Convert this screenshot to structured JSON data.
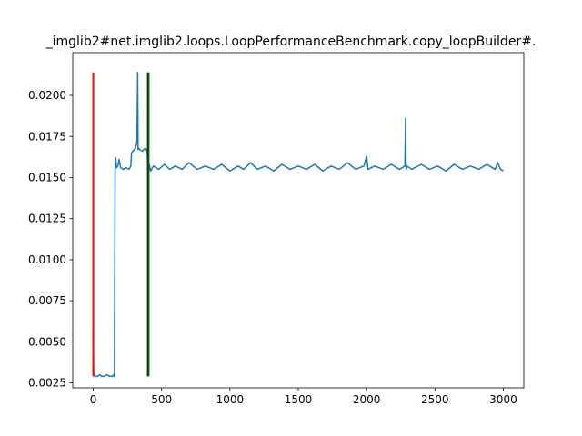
{
  "chart_data": {
    "type": "line",
    "title": "_imglib2#net.imglib2.loops.LoopPerformanceBenchmark.copy_loopBuilder#.",
    "xlabel": "",
    "ylabel": "",
    "xlim": [
      -150,
      3150
    ],
    "ylim": [
      0.0022,
      0.0226
    ],
    "xticks": [
      0,
      500,
      1000,
      1500,
      2000,
      2500,
      3000
    ],
    "xtick_labels": [
      "0",
      "500",
      "1000",
      "1500",
      "2000",
      "2500",
      "3000"
    ],
    "yticks": [
      0.0025,
      0.005,
      0.0075,
      0.01,
      0.0125,
      0.015,
      0.0175,
      0.02
    ],
    "ytick_labels": [
      "0.0025",
      "0.0050",
      "0.0075",
      "0.0100",
      "0.0125",
      "0.0150",
      "0.0175",
      "0.0200"
    ],
    "grid": false,
    "series": [
      {
        "color": "#1f77b4",
        "x": [
          0,
          2,
          4,
          10,
          30,
          50,
          60,
          80,
          100,
          120,
          140,
          150,
          155,
          160,
          165,
          170,
          180,
          190,
          200,
          220,
          240,
          260,
          275,
          280,
          300,
          310,
          320,
          325,
          328,
          332,
          340,
          360,
          380,
          395,
          400,
          405,
          410,
          420,
          440,
          480,
          520,
          560,
          600,
          650,
          700,
          760,
          820,
          880,
          940,
          1000,
          1060,
          1100,
          1150,
          1200,
          1260,
          1320,
          1380,
          1440,
          1500,
          1560,
          1620,
          1680,
          1740,
          1800,
          1860,
          1920,
          1980,
          2000,
          2010,
          2060,
          2120,
          2180,
          2240,
          2280,
          2285,
          2288,
          2291,
          2295,
          2330,
          2400,
          2460,
          2520,
          2580,
          2640,
          2700,
          2760,
          2820,
          2880,
          2940,
          2960,
          2980,
          3000
        ],
        "y": [
          0.0056,
          0.0036,
          0.003,
          0.0029,
          0.0029,
          0.003,
          0.0029,
          0.0029,
          0.003,
          0.0029,
          0.0029,
          0.003,
          0.0029,
          0.0155,
          0.0162,
          0.0156,
          0.0157,
          0.0161,
          0.0156,
          0.0155,
          0.0156,
          0.0155,
          0.0157,
          0.0165,
          0.0167,
          0.0168,
          0.0172,
          0.0214,
          0.0167,
          0.0168,
          0.0167,
          0.0166,
          0.0168,
          0.0166,
          0.0157,
          0.0154,
          0.0158,
          0.0154,
          0.0157,
          0.0155,
          0.0158,
          0.0155,
          0.0157,
          0.0155,
          0.0159,
          0.0155,
          0.0157,
          0.0155,
          0.0158,
          0.0154,
          0.0157,
          0.0155,
          0.0159,
          0.0155,
          0.0157,
          0.0154,
          0.0158,
          0.0155,
          0.0157,
          0.0155,
          0.0158,
          0.0154,
          0.0157,
          0.0155,
          0.0159,
          0.0155,
          0.0157,
          0.0163,
          0.0155,
          0.0157,
          0.0155,
          0.0158,
          0.0155,
          0.0157,
          0.0186,
          0.0158,
          0.0155,
          0.0157,
          0.0155,
          0.0158,
          0.0155,
          0.0157,
          0.0154,
          0.0158,
          0.0155,
          0.0157,
          0.0155,
          0.0158,
          0.0155,
          0.0159,
          0.0155,
          0.0154
        ]
      }
    ],
    "vlines": [
      {
        "x": 0,
        "ymin": 0.0029,
        "ymax": 0.0214,
        "color": "#ff0000"
      },
      {
        "x": 400,
        "ymin": 0.0029,
        "ymax": 0.0214,
        "color": "#000000"
      },
      {
        "x": 405,
        "ymin": 0.0029,
        "ymax": 0.0214,
        "color": "#006400"
      }
    ]
  }
}
